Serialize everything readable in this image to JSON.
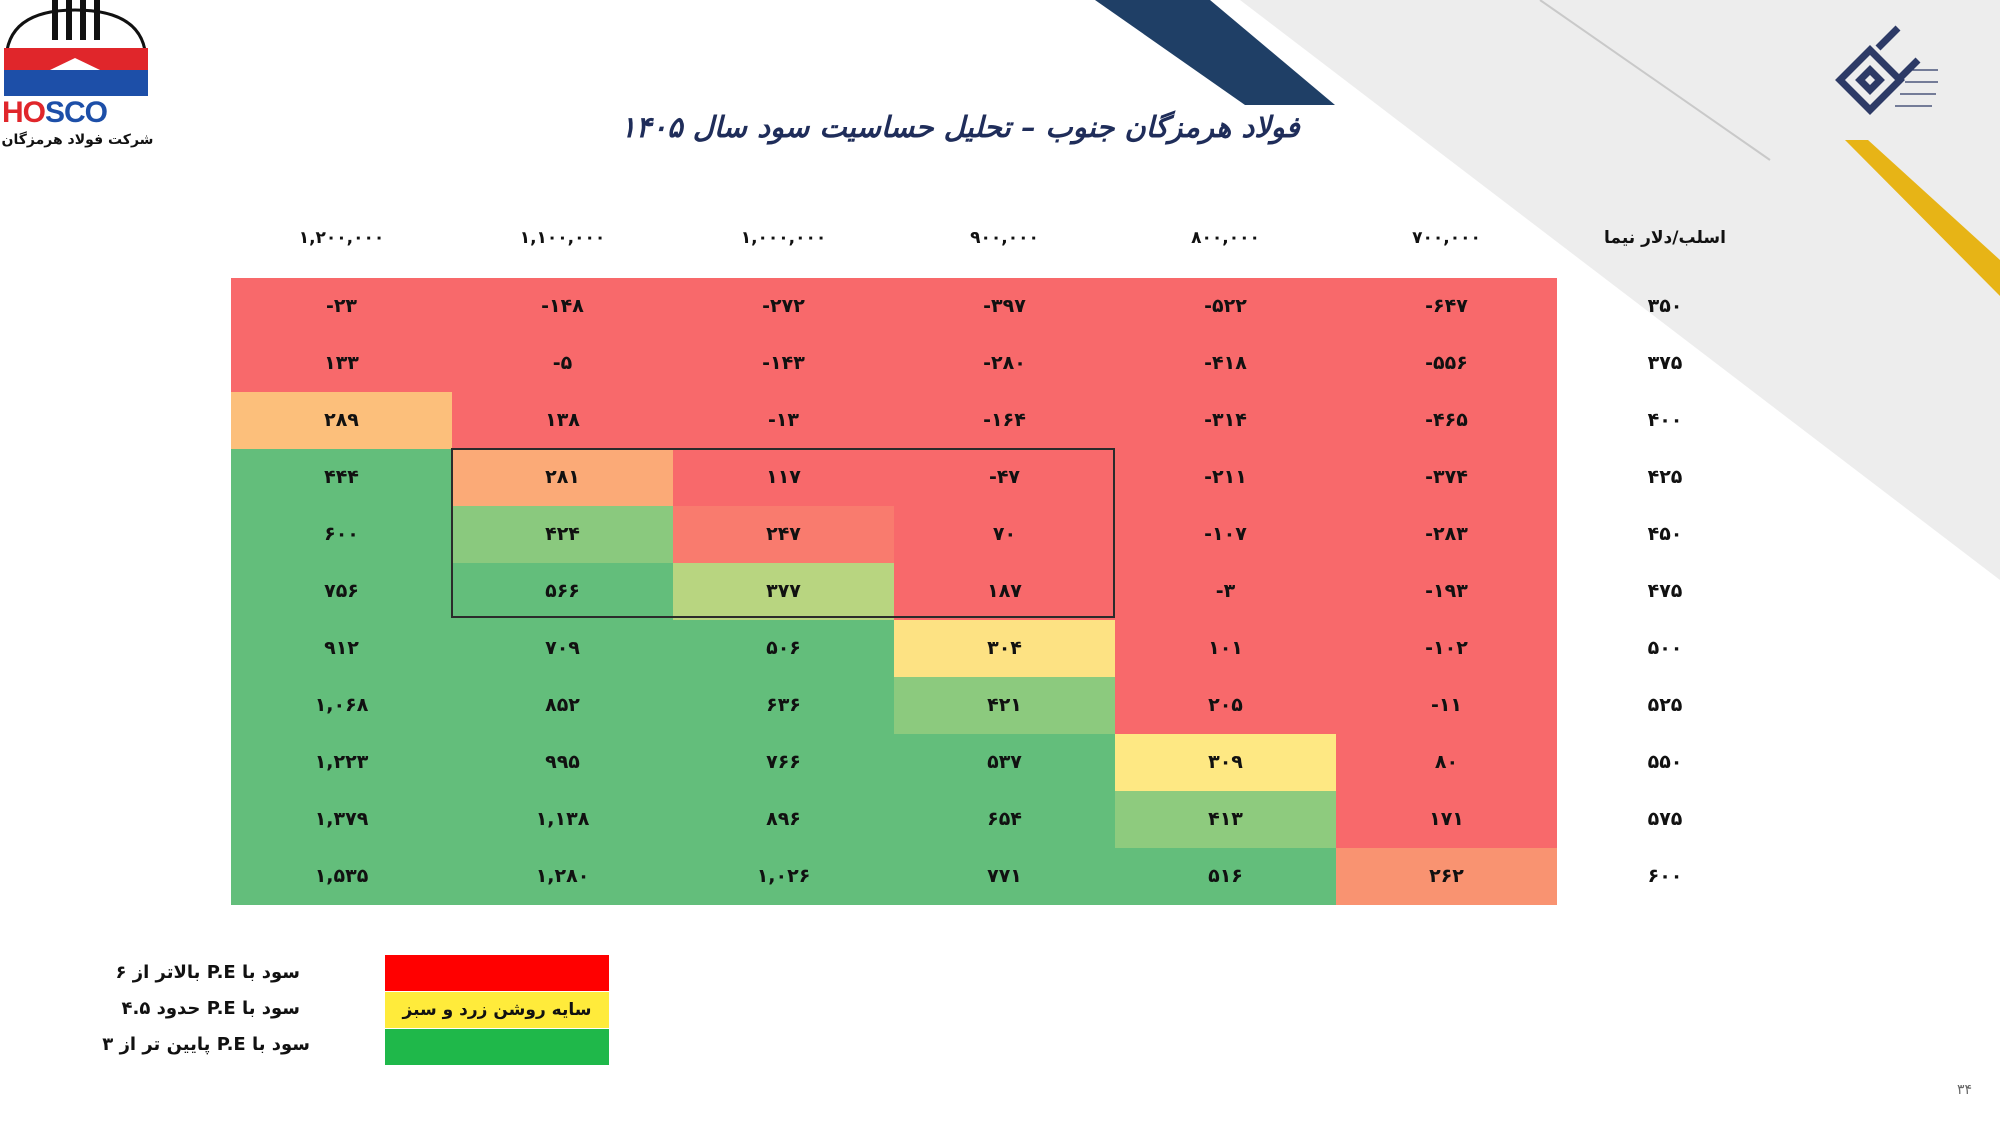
{
  "colors": {
    "red": "#f8696b",
    "dark_red_band": "#ff0000",
    "yellow_band": "#ffeb3b",
    "green_band": "#1fb84a",
    "green": "#63be7b",
    "navy": "#1f3f66",
    "gold": "#e7b416"
  },
  "company": {
    "logo_text_red": "HO",
    "logo_text_blue": "SCO",
    "logo_caption": "شرکت فولاد هرمزگان"
  },
  "title": "فولاد هرمزگان جنوب – تحلیل حساسیت سود سال ۱۴۰۵",
  "table": {
    "corner_header": "اسلب/دلار نیما",
    "columns": [
      "۷۰۰,۰۰۰",
      "۸۰۰,۰۰۰",
      "۹۰۰,۰۰۰",
      "۱,۰۰۰,۰۰۰",
      "۱,۱۰۰,۰۰۰",
      "۱,۲۰۰,۰۰۰"
    ],
    "rows": [
      {
        "label": "۳۵۰",
        "values": [
          "-۶۴۷",
          "-۵۲۲",
          "-۳۹۷",
          "-۲۷۲",
          "-۱۴۸",
          "-۲۳"
        ]
      },
      {
        "label": "۳۷۵",
        "values": [
          "-۵۵۶",
          "-۴۱۸",
          "-۲۸۰",
          "-۱۴۳",
          "-۵",
          "۱۳۳"
        ]
      },
      {
        "label": "۴۰۰",
        "values": [
          "-۴۶۵",
          "-۳۱۴",
          "-۱۶۴",
          "-۱۳",
          "۱۳۸",
          "۲۸۹"
        ]
      },
      {
        "label": "۴۲۵",
        "values": [
          "-۳۷۴",
          "-۲۱۱",
          "-۴۷",
          "۱۱۷",
          "۲۸۱",
          "۴۴۴"
        ]
      },
      {
        "label": "۴۵۰",
        "values": [
          "-۲۸۳",
          "-۱۰۷",
          "۷۰",
          "۲۴۷",
          "۴۲۴",
          "۶۰۰"
        ]
      },
      {
        "label": "۴۷۵",
        "values": [
          "-۱۹۳",
          "-۳",
          "۱۸۷",
          "۳۷۷",
          "۵۶۶",
          "۷۵۶"
        ]
      },
      {
        "label": "۵۰۰",
        "values": [
          "-۱۰۲",
          "۱۰۱",
          "۳۰۴",
          "۵۰۶",
          "۷۰۹",
          "۹۱۲"
        ]
      },
      {
        "label": "۵۲۵",
        "values": [
          "-۱۱",
          "۲۰۵",
          "۴۲۱",
          "۶۳۶",
          "۸۵۲",
          "۱,۰۶۸"
        ]
      },
      {
        "label": "۵۵۰",
        "values": [
          "۸۰",
          "۳۰۹",
          "۵۳۷",
          "۷۶۶",
          "۹۹۵",
          "۱,۲۲۳"
        ]
      },
      {
        "label": "۵۷۵",
        "values": [
          "۱۷۱",
          "۴۱۳",
          "۶۵۴",
          "۸۹۶",
          "۱,۱۳۸",
          "۱,۳۷۹"
        ]
      },
      {
        "label": "۶۰۰",
        "values": [
          "۲۶۲",
          "۵۱۶",
          "۷۷۱",
          "۱,۰۲۶",
          "۱,۲۸۰",
          "۱,۵۳۵"
        ]
      }
    ],
    "cell_colors": [
      [
        "#f8696b",
        "#f8696b",
        "#f8696b",
        "#f8696b",
        "#f8696b",
        "#f8696b"
      ],
      [
        "#f8696b",
        "#f8696b",
        "#f8696b",
        "#f8696b",
        "#f8696b",
        "#f8696b"
      ],
      [
        "#f8696b",
        "#f8696b",
        "#f8696b",
        "#f8696b",
        "#f8696b",
        "#fcbf7b"
      ],
      [
        "#f8696b",
        "#f8696b",
        "#f8696b",
        "#f8696b",
        "#fbaa77",
        "#63be7b"
      ],
      [
        "#f8696b",
        "#f8696b",
        "#f8696b",
        "#f97b6e",
        "#8ac97e",
        "#63be7b"
      ],
      [
        "#f8696b",
        "#f8696b",
        "#f8696b",
        "#b8d580",
        "#63be7b",
        "#63be7b"
      ],
      [
        "#f8696b",
        "#f8696b",
        "#fde283",
        "#63be7b",
        "#63be7b",
        "#63be7b"
      ],
      [
        "#f8696b",
        "#f8696b",
        "#8cca7e",
        "#63be7b",
        "#63be7b",
        "#63be7b"
      ],
      [
        "#f8696b",
        "#fee883",
        "#63be7b",
        "#63be7b",
        "#63be7b",
        "#63be7b"
      ],
      [
        "#f8696b",
        "#8ecb7e",
        "#63be7b",
        "#63be7b",
        "#63be7b",
        "#63be7b"
      ],
      [
        "#f99371",
        "#63be7b",
        "#63be7b",
        "#63be7b",
        "#63be7b",
        "#63be7b"
      ]
    ]
  },
  "legend": {
    "items": [
      {
        "label": "سود با  P.E بالاتر از ۶"
      },
      {
        "label": "سود با  P.E حدود ۴.۵"
      },
      {
        "label": "سود با  P.E پایین تر از ۳"
      }
    ],
    "yellow_bar_label": "سایه روشن زرد و سبز"
  },
  "page_number": "۳۴"
}
